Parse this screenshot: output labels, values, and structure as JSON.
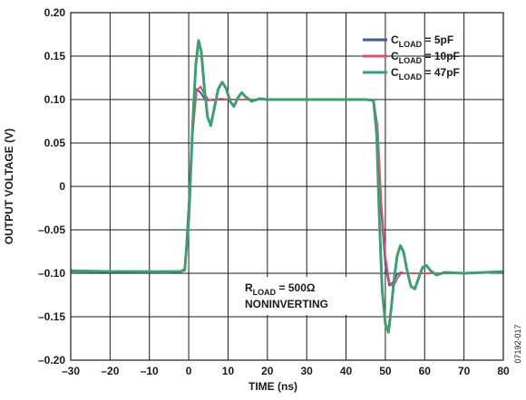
{
  "figure_id": "07192-017",
  "chart_data": {
    "type": "line",
    "xlabel": "TIME (ns)",
    "ylabel": "OUTPUT VOLTAGE (V)",
    "xlim": [
      -30,
      80
    ],
    "ylim": [
      -0.2,
      0.2
    ],
    "xticks": [
      -30,
      -20,
      -10,
      0,
      10,
      20,
      30,
      40,
      50,
      60,
      70,
      80
    ],
    "xtick_labels": [
      "–30",
      "–20",
      "–10",
      "0",
      "10",
      "20",
      "30",
      "40",
      "50",
      "60",
      "70",
      "80"
    ],
    "yticks": [
      0.2,
      0.15,
      0.1,
      0.05,
      0,
      -0.05,
      -0.1,
      -0.15,
      -0.2
    ],
    "ytick_labels": [
      "0.20",
      "0.15",
      "0.10",
      "0.05",
      "0",
      "–0.05",
      "–0.10",
      "–0.15",
      "–0.20"
    ],
    "grid": true,
    "legend_position": "top-right",
    "series": [
      {
        "name_main": "C",
        "name_sub": "LOAD",
        "name_rest": " = 5pF",
        "color": "#3a5a9a",
        "x": [
          -30,
          -5,
          -1,
          0,
          1,
          2,
          3,
          4,
          5,
          6,
          8,
          10,
          20,
          30,
          40,
          46,
          47,
          48,
          49,
          50,
          51,
          52,
          53,
          54,
          55,
          56,
          58,
          60,
          70,
          80
        ],
        "y": [
          -0.098,
          -0.099,
          -0.097,
          -0.02,
          0.07,
          0.112,
          0.108,
          0.101,
          0.099,
          0.1,
          0.1,
          0.1,
          0.1,
          0.1,
          0.1,
          0.1,
          0.099,
          0.06,
          -0.03,
          -0.09,
          -0.114,
          -0.11,
          -0.101,
          -0.099,
          -0.1,
          -0.1,
          -0.1,
          -0.1,
          -0.1,
          -0.099
        ]
      },
      {
        "name_main": "C",
        "name_sub": "LOAD",
        "name_rest": " = 10pF",
        "color": "#e0506e",
        "x": [
          -30,
          -5,
          -1,
          0,
          1,
          2,
          3,
          4,
          5,
          6,
          8,
          10,
          20,
          30,
          40,
          46,
          47,
          48,
          49,
          50,
          51,
          52,
          53,
          54,
          55,
          56,
          58,
          60,
          70,
          80
        ],
        "y": [
          -0.097,
          -0.098,
          -0.097,
          -0.03,
          0.06,
          0.11,
          0.115,
          0.106,
          0.1,
          0.099,
          0.101,
          0.1,
          0.1,
          0.1,
          0.1,
          0.1,
          0.1,
          0.07,
          -0.02,
          -0.08,
          -0.11,
          -0.116,
          -0.106,
          -0.1,
          -0.1,
          -0.1,
          -0.1,
          -0.1,
          -0.1,
          -0.098
        ]
      },
      {
        "name_main": "C",
        "name_sub": "LOAD",
        "name_rest": " = 47pF",
        "color": "#3aa070",
        "x": [
          -30,
          -20,
          -10,
          -2,
          -1,
          0,
          1,
          1.8,
          2.5,
          3.2,
          4,
          4.8,
          5.6,
          6.5,
          7.5,
          8.5,
          9.5,
          10.5,
          11.5,
          12.5,
          13.5,
          14.5,
          16,
          18,
          20,
          25,
          30,
          40,
          45,
          47,
          47.8,
          48.5,
          49.2,
          50,
          50.8,
          51.5,
          52.2,
          53,
          53.8,
          54.6,
          55.5,
          56.5,
          57.5,
          58.5,
          59.5,
          60.5,
          61.5,
          63,
          65,
          70,
          80
        ],
        "y": [
          -0.097,
          -0.098,
          -0.098,
          -0.098,
          -0.095,
          -0.04,
          0.07,
          0.14,
          0.168,
          0.155,
          0.112,
          0.08,
          0.07,
          0.09,
          0.112,
          0.12,
          0.113,
          0.098,
          0.092,
          0.102,
          0.108,
          0.103,
          0.098,
          0.101,
          0.1,
          0.1,
          0.1,
          0.1,
          0.1,
          0.099,
          0.06,
          -0.04,
          -0.12,
          -0.158,
          -0.168,
          -0.14,
          -0.108,
          -0.08,
          -0.068,
          -0.075,
          -0.096,
          -0.115,
          -0.118,
          -0.105,
          -0.093,
          -0.091,
          -0.097,
          -0.102,
          -0.099,
          -0.1,
          -0.098
        ]
      }
    ],
    "annotation": {
      "line1_main": "R",
      "line1_sub": "LOAD",
      "line1_rest": " = 500Ω",
      "line2": "NONINVERTING"
    }
  }
}
